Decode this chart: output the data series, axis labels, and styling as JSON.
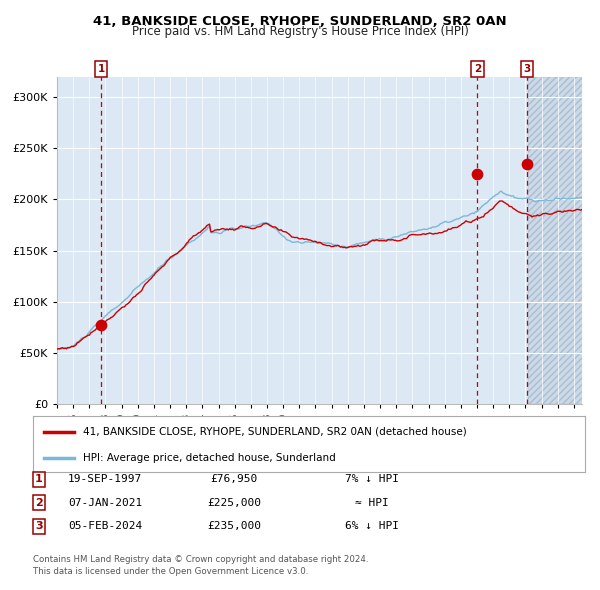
{
  "title_line1": "41, BANKSIDE CLOSE, RYHOPE, SUNDERLAND, SR2 0AN",
  "title_line2": "Price paid vs. HM Land Registry's House Price Index (HPI)",
  "sale1_date": "19-SEP-1997",
  "sale1_price": 76950,
  "sale1_label": "7% ↓ HPI",
  "sale2_date": "07-JAN-2021",
  "sale2_price": 225000,
  "sale2_label": "≈ HPI",
  "sale3_date": "05-FEB-2024",
  "sale3_price": 235000,
  "sale3_label": "6% ↓ HPI",
  "legend1": "41, BANKSIDE CLOSE, RYHOPE, SUNDERLAND, SR2 0AN (detached house)",
  "legend2": "HPI: Average price, detached house, Sunderland",
  "footer1": "Contains HM Land Registry data © Crown copyright and database right 2024.",
  "footer2": "This data is licensed under the Open Government Licence v3.0.",
  "sale1_year": 1997.72,
  "sale2_year": 2021.02,
  "sale3_year": 2024.09,
  "hpi_color": "#7ab8d9",
  "price_color": "#cc0000",
  "bg_color": "#dce9f5",
  "future_bg_color": "#ccd9e8",
  "grid_color": "#ffffff",
  "vline_color": "#cc0000",
  "ylim": [
    0,
    320000
  ],
  "xlim_start": 1995.0,
  "xlim_end": 2027.5,
  "future_start": 2024.17
}
